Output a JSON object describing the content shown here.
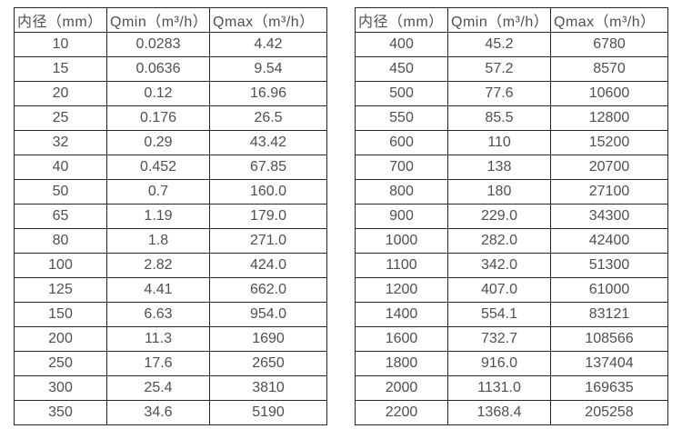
{
  "colors": {
    "background": "#ffffff",
    "border": "#262626",
    "text": "#4f4f4f"
  },
  "tables": [
    {
      "name": "small-diameter-flow-table",
      "headers": [
        "内径（mm）",
        "Qmin（m³/h）",
        "Qmax（m³/h）"
      ],
      "rows": [
        [
          "10",
          "0.0283",
          "4.42"
        ],
        [
          "15",
          "0.0636",
          "9.54"
        ],
        [
          "20",
          "0.12",
          "16.96"
        ],
        [
          "25",
          "0.176",
          "26.5"
        ],
        [
          "32",
          "0.29",
          "43.42"
        ],
        [
          "40",
          "0.452",
          "67.85"
        ],
        [
          "50",
          "0.7",
          "160.0"
        ],
        [
          "65",
          "1.19",
          "179.0"
        ],
        [
          "80",
          "1.8",
          "271.0"
        ],
        [
          "100",
          "2.82",
          "424.0"
        ],
        [
          "125",
          "4.41",
          "662.0"
        ],
        [
          "150",
          "6.63",
          "954.0"
        ],
        [
          "200",
          "11.3",
          "1690"
        ],
        [
          "250",
          "17.6",
          "2650"
        ],
        [
          "300",
          "25.4",
          "3810"
        ],
        [
          "350",
          "34.6",
          "5190"
        ]
      ]
    },
    {
      "name": "large-diameter-flow-table",
      "headers": [
        "内径（mm）",
        "Qmin（m³/h）",
        "Qmax（m³/h）"
      ],
      "rows": [
        [
          "400",
          "45.2",
          "6780"
        ],
        [
          "450",
          "57.2",
          "8570"
        ],
        [
          "500",
          "77.6",
          "10600"
        ],
        [
          "550",
          "85.5",
          "12800"
        ],
        [
          "600",
          "110",
          "15200"
        ],
        [
          "700",
          "138",
          "20700"
        ],
        [
          "800",
          "180",
          "27100"
        ],
        [
          "900",
          "229.0",
          "34300"
        ],
        [
          "1000",
          "282.0",
          "42400"
        ],
        [
          "1100",
          "342.0",
          "51300"
        ],
        [
          "1200",
          "407.0",
          "61000"
        ],
        [
          "1400",
          "554.1",
          "83121"
        ],
        [
          "1600",
          "732.7",
          "108566"
        ],
        [
          "1800",
          "916.0",
          "137404"
        ],
        [
          "2000",
          "1131.0",
          "169635"
        ],
        [
          "2200",
          "1368.4",
          "205258"
        ]
      ]
    }
  ]
}
